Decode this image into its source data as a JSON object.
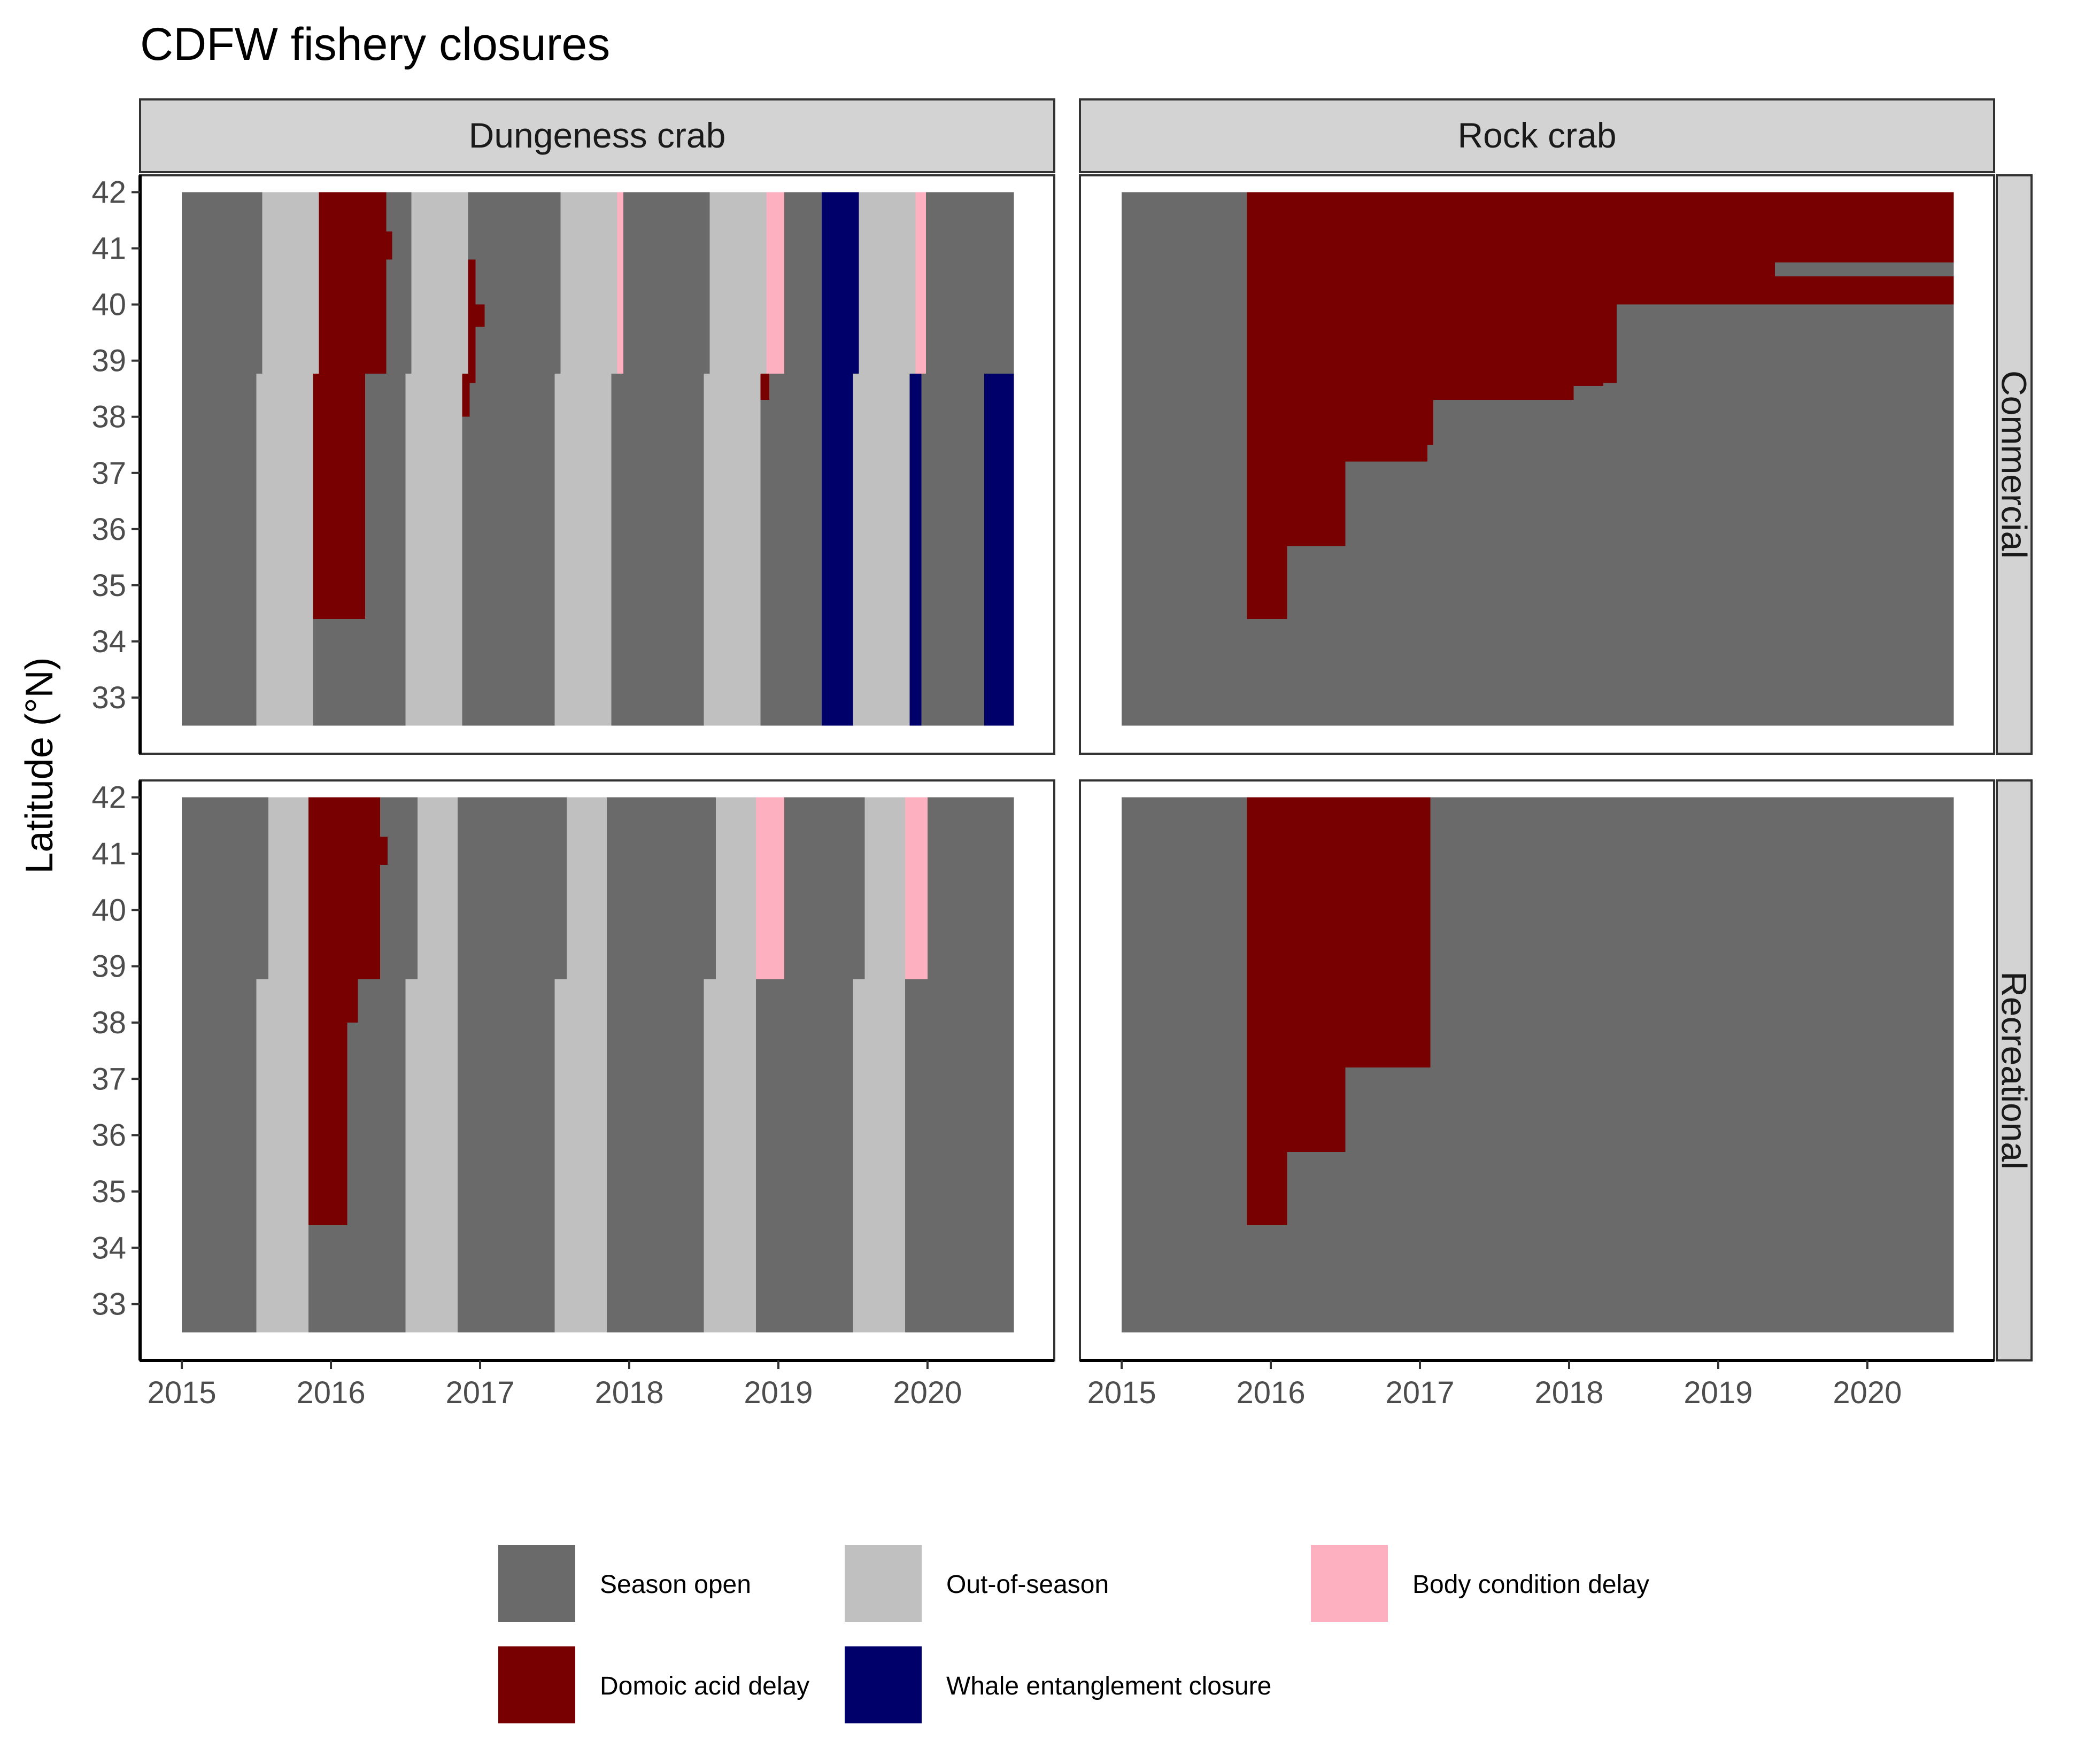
{
  "chart_data": {
    "type": "heatmap",
    "title": "CDFW fishery closures",
    "xlabel": "",
    "ylabel": "Latitude (°N)",
    "xlim": [
      2014.72,
      2020.85
    ],
    "ylim": [
      32.0,
      42.3
    ],
    "x_ticks": [
      "2015",
      "2016",
      "2017",
      "2018",
      "2019",
      "2020"
    ],
    "y_ticks": [
      "33",
      "34",
      "35",
      "36",
      "37",
      "38",
      "39",
      "40",
      "41",
      "42"
    ],
    "facet_columns": [
      "Dungeness crab",
      "Rock crab"
    ],
    "facet_rows": [
      "Commercial",
      "Recreational"
    ],
    "legend_position": "bottom",
    "categories": [
      {
        "key": "open",
        "label": "Season open",
        "color": "#6a6a6a"
      },
      {
        "key": "out",
        "label": "Out-of-season",
        "color": "#c0c0c0"
      },
      {
        "key": "body",
        "label": "Body condition delay",
        "color": "#fdb0c0"
      },
      {
        "key": "domoic",
        "label": "Domoic acid delay",
        "color": "#780000"
      },
      {
        "key": "whale",
        "label": "Whale entanglement closure",
        "color": "#00006b"
      }
    ],
    "panels": [
      {
        "species": "Dungeness crab",
        "fishery": "Commercial",
        "background": {
          "status": "open",
          "x": [
            2015.0,
            2020.58
          ],
          "y": [
            32.5,
            42.0
          ]
        },
        "tiles": [
          {
            "status": "out",
            "x": [
              2015.54,
              2015.92
            ],
            "y": [
              38.77,
              42.0
            ]
          },
          {
            "status": "out",
            "x": [
              2015.5,
              2015.88
            ],
            "y": [
              32.5,
              38.77
            ]
          },
          {
            "status": "out",
            "x": [
              2016.54,
              2016.92
            ],
            "y": [
              38.77,
              42.0
            ]
          },
          {
            "status": "out",
            "x": [
              2016.5,
              2016.88
            ],
            "y": [
              32.5,
              38.77
            ]
          },
          {
            "status": "out",
            "x": [
              2017.54,
              2017.92
            ],
            "y": [
              38.77,
              42.0
            ]
          },
          {
            "status": "out",
            "x": [
              2017.5,
              2017.88
            ],
            "y": [
              32.5,
              38.77
            ]
          },
          {
            "status": "out",
            "x": [
              2018.54,
              2018.92
            ],
            "y": [
              38.77,
              42.0
            ]
          },
          {
            "status": "out",
            "x": [
              2018.5,
              2018.88
            ],
            "y": [
              32.5,
              38.77
            ]
          },
          {
            "status": "out",
            "x": [
              2019.54,
              2019.92
            ],
            "y": [
              38.77,
              42.0
            ]
          },
          {
            "status": "out",
            "x": [
              2019.5,
              2019.88
            ],
            "y": [
              32.5,
              38.77
            ]
          },
          {
            "status": "body",
            "x": [
              2017.92,
              2017.96
            ],
            "y": [
              38.77,
              42.0
            ]
          },
          {
            "status": "body",
            "x": [
              2018.92,
              2019.04
            ],
            "y": [
              38.77,
              42.0
            ]
          },
          {
            "status": "body",
            "x": [
              2019.92,
              2019.99
            ],
            "y": [
              38.77,
              42.0
            ]
          },
          {
            "status": "domoic",
            "x": [
              2015.92,
              2016.37
            ],
            "y": [
              38.77,
              42.0
            ]
          },
          {
            "status": "domoic",
            "x": [
              2016.37,
              2016.41
            ],
            "y": [
              40.8,
              41.3
            ]
          },
          {
            "status": "domoic",
            "x": [
              2015.88,
              2016.23
            ],
            "y": [
              34.4,
              38.77
            ]
          },
          {
            "status": "domoic",
            "x": [
              2016.92,
              2016.97
            ],
            "y": [
              38.6,
              40.8
            ]
          },
          {
            "status": "domoic",
            "x": [
              2016.97,
              2017.03
            ],
            "y": [
              39.6,
              40.0
            ]
          },
          {
            "status": "domoic",
            "x": [
              2016.88,
              2016.93
            ],
            "y": [
              38.0,
              38.77
            ]
          },
          {
            "status": "domoic",
            "x": [
              2018.88,
              2018.94
            ],
            "y": [
              38.3,
              38.77
            ]
          },
          {
            "status": "whale",
            "x": [
              2019.29,
              2019.54
            ],
            "y": [
              38.77,
              42.0
            ]
          },
          {
            "status": "whale",
            "x": [
              2019.29,
              2019.5
            ],
            "y": [
              32.5,
              38.77
            ]
          },
          {
            "status": "whale",
            "x": [
              2019.88,
              2019.96
            ],
            "y": [
              32.5,
              38.77
            ]
          },
          {
            "status": "whale",
            "x": [
              2020.38,
              2020.58
            ],
            "y": [
              32.5,
              38.77
            ]
          }
        ]
      },
      {
        "species": "Rock crab",
        "fishery": "Commercial",
        "background": {
          "status": "open",
          "x": [
            2015.0,
            2020.58
          ],
          "y": [
            32.5,
            42.0
          ]
        },
        "tiles": [
          {
            "status": "domoic",
            "x": [
              2015.84,
              2020.58
            ],
            "y": [
              40.0,
              42.0
            ]
          },
          {
            "status": "domoic",
            "x": [
              2015.84,
              2018.32
            ],
            "y": [
              38.6,
              40.0
            ]
          },
          {
            "status": "domoic",
            "x": [
              2015.84,
              2018.23
            ],
            "y": [
              38.55,
              38.6
            ]
          },
          {
            "status": "domoic",
            "x": [
              2015.84,
              2018.03
            ],
            "y": [
              38.3,
              38.55
            ]
          },
          {
            "status": "domoic",
            "x": [
              2015.84,
              2017.09
            ],
            "y": [
              37.5,
              38.3
            ]
          },
          {
            "status": "domoic",
            "x": [
              2015.84,
              2017.05
            ],
            "y": [
              37.2,
              37.5
            ]
          },
          {
            "status": "domoic",
            "x": [
              2015.84,
              2016.5
            ],
            "y": [
              35.7,
              37.2
            ]
          },
          {
            "status": "domoic",
            "x": [
              2015.84,
              2016.11
            ],
            "y": [
              34.4,
              35.7
            ]
          },
          {
            "status": "open",
            "x": [
              2019.38,
              2020.58
            ],
            "y": [
              40.5,
              40.75
            ]
          }
        ]
      },
      {
        "species": "Dungeness crab",
        "fishery": "Recreational",
        "background": {
          "status": "open",
          "x": [
            2015.0,
            2020.58
          ],
          "y": [
            32.5,
            42.0
          ]
        },
        "tiles": [
          {
            "status": "out",
            "x": [
              2015.58,
              2015.85
            ],
            "y": [
              38.77,
              42.0
            ]
          },
          {
            "status": "out",
            "x": [
              2015.5,
              2015.85
            ],
            "y": [
              32.5,
              38.77
            ]
          },
          {
            "status": "out",
            "x": [
              2016.58,
              2016.85
            ],
            "y": [
              38.77,
              42.0
            ]
          },
          {
            "status": "out",
            "x": [
              2016.5,
              2016.85
            ],
            "y": [
              32.5,
              38.77
            ]
          },
          {
            "status": "out",
            "x": [
              2017.58,
              2017.85
            ],
            "y": [
              38.77,
              42.0
            ]
          },
          {
            "status": "out",
            "x": [
              2017.5,
              2017.85
            ],
            "y": [
              32.5,
              38.77
            ]
          },
          {
            "status": "out",
            "x": [
              2018.58,
              2018.85
            ],
            "y": [
              38.77,
              42.0
            ]
          },
          {
            "status": "out",
            "x": [
              2018.5,
              2018.85
            ],
            "y": [
              32.5,
              38.77
            ]
          },
          {
            "status": "out",
            "x": [
              2019.58,
              2019.85
            ],
            "y": [
              38.77,
              42.0
            ]
          },
          {
            "status": "out",
            "x": [
              2019.5,
              2019.85
            ],
            "y": [
              32.5,
              38.77
            ]
          },
          {
            "status": "body",
            "x": [
              2018.85,
              2019.04
            ],
            "y": [
              38.77,
              42.0
            ]
          },
          {
            "status": "body",
            "x": [
              2019.85,
              2020.0
            ],
            "y": [
              38.77,
              42.0
            ]
          },
          {
            "status": "domoic",
            "x": [
              2015.85,
              2016.33
            ],
            "y": [
              38.77,
              42.0
            ]
          },
          {
            "status": "domoic",
            "x": [
              2016.33,
              2016.38
            ],
            "y": [
              40.8,
              41.3
            ]
          },
          {
            "status": "domoic",
            "x": [
              2015.85,
              2016.18
            ],
            "y": [
              38.0,
              38.77
            ]
          },
          {
            "status": "domoic",
            "x": [
              2015.85,
              2016.11
            ],
            "y": [
              34.4,
              38.0
            ]
          }
        ]
      },
      {
        "species": "Rock crab",
        "fishery": "Recreational",
        "background": {
          "status": "open",
          "x": [
            2015.0,
            2020.58
          ],
          "y": [
            32.5,
            42.0
          ]
        },
        "tiles": [
          {
            "status": "domoic",
            "x": [
              2015.84,
              2017.07
            ],
            "y": [
              37.2,
              42.0
            ]
          },
          {
            "status": "domoic",
            "x": [
              2015.84,
              2016.5
            ],
            "y": [
              35.7,
              37.2
            ]
          },
          {
            "status": "domoic",
            "x": [
              2015.84,
              2016.11
            ],
            "y": [
              34.4,
              35.7
            ]
          }
        ]
      }
    ]
  }
}
